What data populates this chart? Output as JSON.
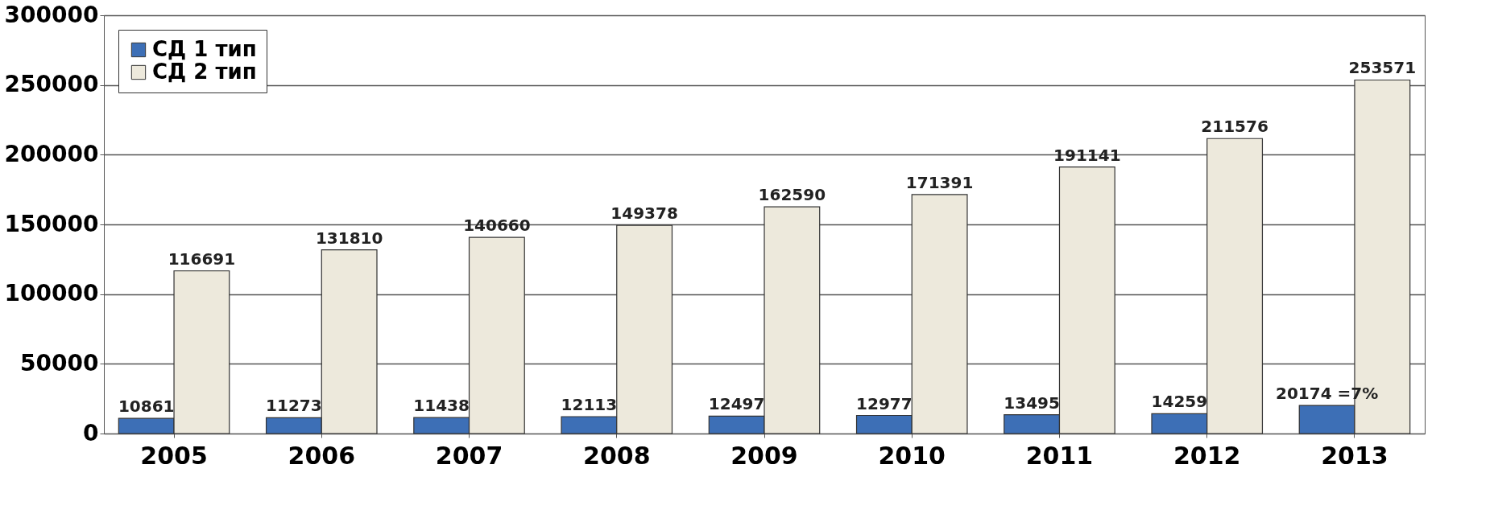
{
  "chart_data": {
    "type": "bar",
    "categories": [
      "2005",
      "2006",
      "2007",
      "2008",
      "2009",
      "2010",
      "2011",
      "2012",
      "2013"
    ],
    "series": [
      {
        "name": "СД 1 тип",
        "color": "#3d6fb6",
        "values": [
          10861,
          11273,
          11438,
          12113,
          12497,
          12977,
          13495,
          14259,
          20174
        ],
        "value_labels": [
          "10861",
          "11273",
          "11438",
          "12113",
          "12497",
          "12977",
          "13495",
          "14259",
          "20174 =7%"
        ]
      },
      {
        "name": "СД 2 тип",
        "color": "#ede9dc",
        "values": [
          116691,
          131810,
          140660,
          149378,
          162590,
          171391,
          191141,
          211576,
          253571
        ],
        "value_labels": [
          "116691",
          "131810",
          "140660",
          "149378",
          "162590",
          "171391",
          "191141",
          "211576",
          "253571"
        ]
      }
    ],
    "ylim": [
      0,
      300000
    ],
    "yticks": [
      0,
      50000,
      100000,
      150000,
      200000,
      250000,
      300000
    ],
    "grid": "y",
    "legend": "top left"
  }
}
